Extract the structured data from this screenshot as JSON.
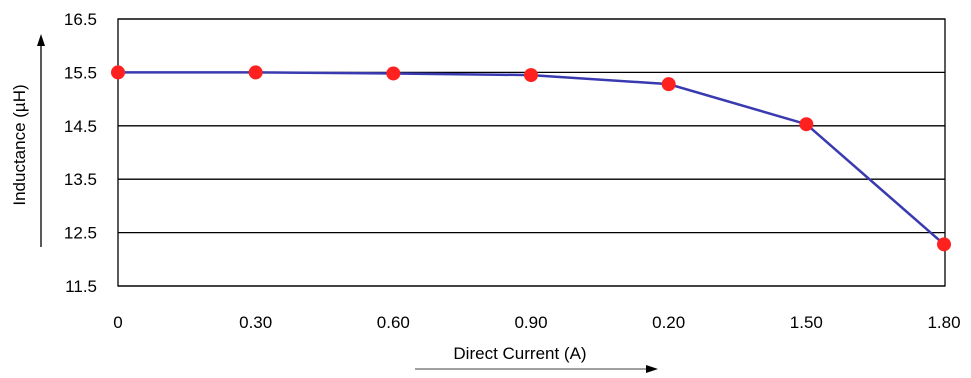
{
  "chart_data": {
    "type": "line",
    "title": "",
    "xlabel": "Direct Current (A)",
    "ylabel": "Inductance (µH)",
    "categories": [
      "0",
      "0.30",
      "0.60",
      "0.90",
      "0.20",
      "1.50",
      "1.80"
    ],
    "series": [
      {
        "values": [
          15.5,
          15.5,
          15.48,
          15.45,
          15.28,
          14.53,
          12.28
        ],
        "line_color": "#3a3ab0",
        "marker_color": "#ff2020"
      }
    ],
    "yticks": [
      "16.5",
      "15.5",
      "14.5",
      "13.5",
      "12.5",
      "11.5"
    ],
    "ylim": [
      11.5,
      16.5
    ],
    "grid": "horizontal",
    "legend": "none"
  }
}
